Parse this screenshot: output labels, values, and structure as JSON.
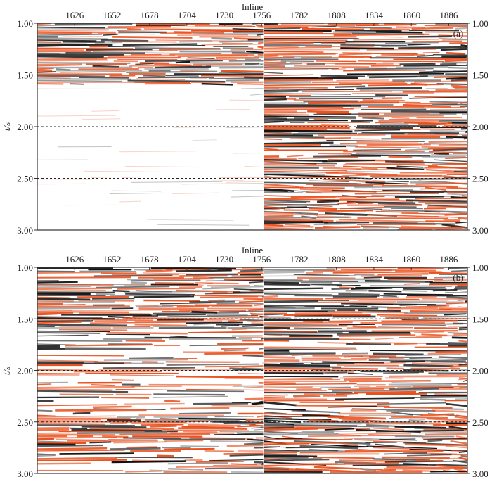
{
  "chart_data": [
    {
      "type": "heatmap",
      "panel_label": "(a)",
      "xlabel": "Inline",
      "ylabel": "t/s",
      "x_ticks": [
        "1626",
        "1652",
        "1678",
        "1704",
        "1730",
        "1756",
        "1782",
        "1808",
        "1834",
        "1860",
        "1886"
      ],
      "y_ticks": [
        "1.00",
        "1.50",
        "2.00",
        "2.50",
        "3.00"
      ],
      "xlim": [
        1600,
        1899
      ],
      "ylim": [
        3.0,
        1.0
      ],
      "reference_lines_t": [
        1.5,
        2.0,
        2.5
      ],
      "colors": {
        "positive": "#e8501e",
        "negative": "#111111"
      }
    },
    {
      "type": "heatmap",
      "panel_label": "(b)",
      "xlabel": "Inline",
      "ylabel": "t/s",
      "x_ticks": [
        "1626",
        "1652",
        "1678",
        "1704",
        "1730",
        "1756",
        "1782",
        "1808",
        "1834",
        "1860",
        "1886"
      ],
      "y_ticks": [
        "1.00",
        "1.50",
        "2.00",
        "2.50",
        "3.00"
      ],
      "xlim": [
        1600,
        1899
      ],
      "ylim": [
        3.0,
        1.0
      ],
      "reference_lines_t": [
        1.5,
        2.0,
        2.5
      ],
      "colors": {
        "positive": "#e8501e",
        "negative": "#111111"
      }
    }
  ]
}
